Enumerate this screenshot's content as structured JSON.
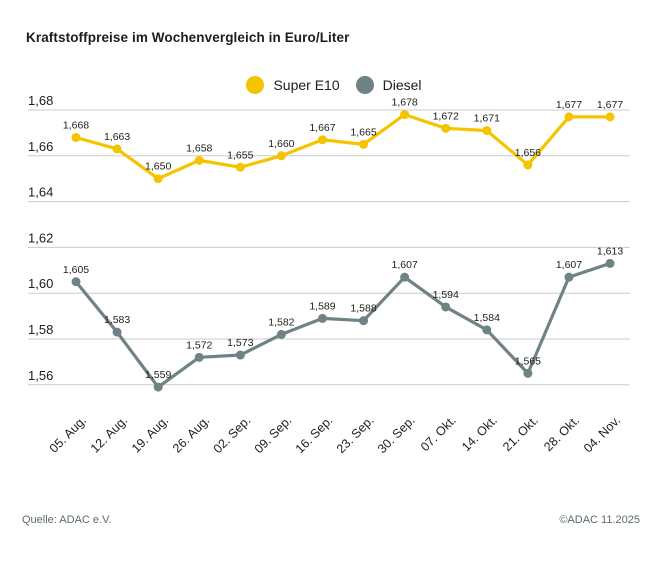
{
  "title": "Kraftstoffpreise im Wochenvergleich in Euro/Liter",
  "legend": [
    {
      "label": "Super E10",
      "color": "#F4C400"
    },
    {
      "label": "Diesel",
      "color": "#6F8285"
    }
  ],
  "footer": {
    "source": "Quelle: ADAC e.V.",
    "copyright": "©ADAC 11.2025"
  },
  "chart_data": {
    "type": "line",
    "title": "Kraftstoffpreise im Wochenvergleich in Euro/Liter",
    "unit": "Euro/Liter",
    "decimal_separator": ",",
    "grid": true,
    "legend_position": "top-center",
    "categories": [
      "05. Aug.",
      "12. Aug.",
      "19. Aug.",
      "26. Aug.",
      "02. Sep.",
      "09. Sep.",
      "16. Sep.",
      "23. Sep.",
      "30. Sep.",
      "07. Okt.",
      "14. Okt.",
      "21. Okt.",
      "28. Okt.",
      "04. Nov."
    ],
    "series": [
      {
        "name": "Super E10",
        "color": "#F4C400",
        "values": [
          1.668,
          1.663,
          1.65,
          1.658,
          1.655,
          1.66,
          1.667,
          1.665,
          1.678,
          1.672,
          1.671,
          1.656,
          1.677,
          1.677
        ]
      },
      {
        "name": "Diesel",
        "color": "#6F8285",
        "values": [
          1.605,
          1.583,
          1.559,
          1.572,
          1.573,
          1.582,
          1.589,
          1.588,
          1.607,
          1.594,
          1.584,
          1.565,
          1.607,
          1.613
        ]
      }
    ],
    "yticks": [
      1.68,
      1.66,
      1.64,
      1.62,
      1.6,
      1.58,
      1.56
    ],
    "ylim": [
      1.545,
      1.685
    ],
    "colors": {
      "gridline": "#cbcbcb",
      "label_text": "#1d1d1b",
      "footer_text": "#5d6a70"
    }
  }
}
